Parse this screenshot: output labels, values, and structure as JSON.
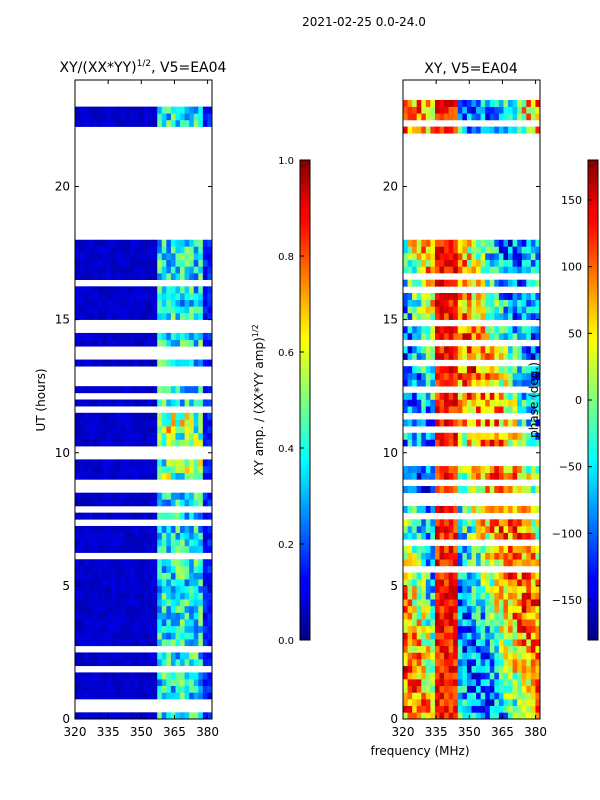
{
  "figure": {
    "suptitle": "2021-02-25 0.0-24.0",
    "shared_xlabel": "frequency (MHz)"
  },
  "chart_data": [
    {
      "type": "heatmap",
      "title": "XY/(XX*YY)",
      "title_superscript": "1/2",
      "title_suffix": ", V5=EA04",
      "xlabel": "",
      "ylabel": "UT (hours)",
      "xlim": [
        320,
        382
      ],
      "ylim": [
        0,
        24
      ],
      "xticks": [
        320,
        335,
        350,
        365,
        380
      ],
      "yticks": [
        0,
        5,
        10,
        15,
        20
      ],
      "quantity": "normalized XY amplitude",
      "value_range": [
        0.0,
        1.0
      ],
      "blank_hours": [
        [
          18.0,
          22.0
        ],
        [
          23.3,
          24.0
        ]
      ],
      "colorbar": {
        "label": "XY amp. / (XX*YY amp)",
        "label_superscript": "1/2",
        "min": 0.0,
        "max": 1.0,
        "ticks": [
          "0.0",
          "0.2",
          "0.4",
          "0.6",
          "0.8",
          "1.0"
        ],
        "tick_values": [
          0.0,
          0.2,
          0.4,
          0.6,
          0.8,
          1.0
        ]
      }
    },
    {
      "type": "heatmap",
      "title": "XY, V5=EA04",
      "xlabel": "frequency (MHz)",
      "ylabel": "",
      "xlim": [
        320,
        382
      ],
      "ylim": [
        0,
        24
      ],
      "xticks": [
        320,
        335,
        350,
        365,
        380
      ],
      "yticks": [
        0,
        5,
        10,
        15,
        20
      ],
      "quantity": "XY phase",
      "value_range": [
        -180,
        180
      ],
      "blank_hours": [
        [
          18.0,
          22.0
        ],
        [
          23.3,
          24.0
        ]
      ],
      "colorbar": {
        "label": "phase (deg.)",
        "min": -180,
        "max": 180,
        "ticks": [
          "−150",
          "−100",
          "−50",
          "0",
          "50",
          "100",
          "150"
        ],
        "tick_values": [
          -150,
          -100,
          -50,
          0,
          50,
          100,
          150
        ]
      }
    }
  ]
}
